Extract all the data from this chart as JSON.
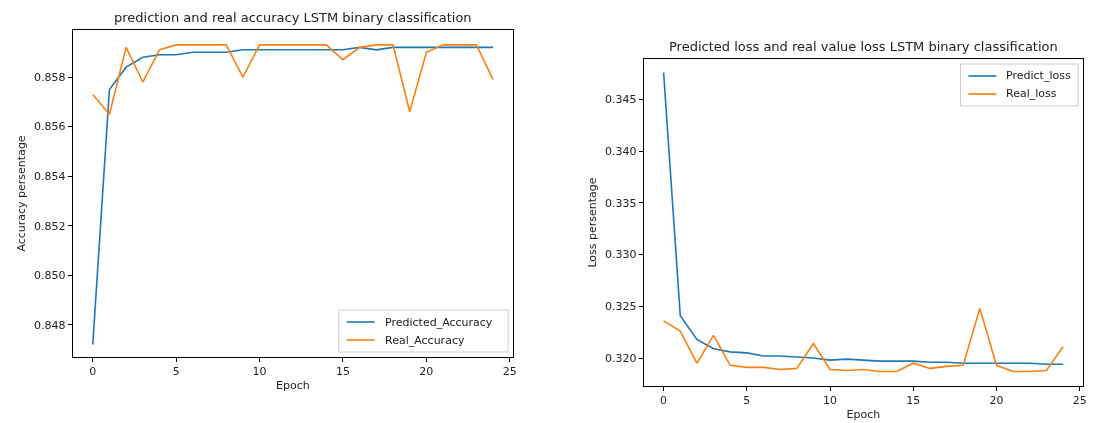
{
  "chart_data": [
    {
      "type": "line",
      "title": "prediction and real accuracy LSTM binary classification",
      "xlabel": "Epoch",
      "ylabel": "Accuracy persentage",
      "x": [
        0,
        1,
        2,
        3,
        4,
        5,
        6,
        7,
        8,
        9,
        10,
        11,
        12,
        13,
        14,
        15,
        16,
        17,
        18,
        19,
        20,
        21,
        22,
        23,
        24
      ],
      "series": [
        {
          "name": "Predicted_Accuracy",
          "color": "#1f77b4",
          "values": [
            0.8472,
            0.8575,
            0.8584,
            0.8588,
            0.8589,
            0.8589,
            0.859,
            0.859,
            0.859,
            0.8591,
            0.8591,
            0.8591,
            0.8591,
            0.8591,
            0.8591,
            0.8591,
            0.8592,
            0.8591,
            0.8592,
            0.8592,
            0.8592,
            0.8592,
            0.8592,
            0.8592,
            0.8592
          ]
        },
        {
          "name": "Real_Accuracy",
          "color": "#ff7f0e",
          "values": [
            0.8573,
            0.8565,
            0.8592,
            0.8578,
            0.8591,
            0.8593,
            0.8593,
            0.8593,
            0.8593,
            0.858,
            0.8593,
            0.8593,
            0.8593,
            0.8593,
            0.8593,
            0.8587,
            0.8592,
            0.8593,
            0.8593,
            0.8566,
            0.859,
            0.8593,
            0.8593,
            0.8593,
            0.8579
          ]
        }
      ],
      "xlim": [
        -1.2,
        25.2
      ],
      "xticks": [
        0,
        5,
        10,
        15,
        20,
        25
      ],
      "ylim": [
        0.8467,
        0.8599
      ],
      "yticks": [
        0.848,
        {
          "value": 0.85,
          "label": "0.850"
        },
        0.852,
        0.854,
        0.856,
        0.858
      ],
      "legend": "bottom right",
      "line_style": "solid",
      "marker": "none"
    },
    {
      "type": "line",
      "title": "Predicted loss and real value loss LSTM binary classification",
      "xlabel": "Epoch",
      "ylabel": "Loss persentage",
      "x": [
        0,
        1,
        2,
        3,
        4,
        5,
        6,
        7,
        8,
        9,
        10,
        11,
        12,
        13,
        14,
        15,
        16,
        17,
        18,
        19,
        20,
        21,
        22,
        23,
        24
      ],
      "series": [
        {
          "name": "Predict_loss",
          "color": "#1f77b4",
          "values": [
            0.3476,
            0.3241,
            0.3218,
            0.3209,
            0.3206,
            0.3205,
            0.3202,
            0.3202,
            0.3201,
            0.32,
            0.3198,
            0.3199,
            0.3198,
            0.3197,
            0.3197,
            0.3197,
            0.3196,
            0.3196,
            0.3195,
            0.3195,
            0.3195,
            0.3195,
            0.3195,
            0.3194,
            0.3194
          ]
        },
        {
          "name": "Real_loss",
          "color": "#ff7f0e",
          "values": [
            0.3236,
            0.3226,
            0.3195,
            0.3222,
            0.3193,
            0.3191,
            0.3191,
            0.3189,
            0.319,
            0.3214,
            0.3189,
            0.3188,
            0.3189,
            0.3187,
            0.3187,
            0.3195,
            0.319,
            0.3192,
            0.3193,
            0.3248,
            0.3193,
            0.3187,
            0.3187,
            0.3188,
            0.3211
          ]
        }
      ],
      "xlim": [
        -1.2,
        25.2
      ],
      "xticks": [
        0,
        5,
        10,
        15,
        20,
        25
      ],
      "ylim": [
        0.3173,
        0.3489
      ],
      "yticks": [
        {
          "value": 0.32,
          "label": "0.320"
        },
        0.325,
        {
          "value": 0.33,
          "label": "0.330"
        },
        0.335,
        {
          "value": 0.34,
          "label": "0.340"
        },
        0.345
      ],
      "legend": "top right",
      "line_style": "solid",
      "marker": "none"
    }
  ]
}
